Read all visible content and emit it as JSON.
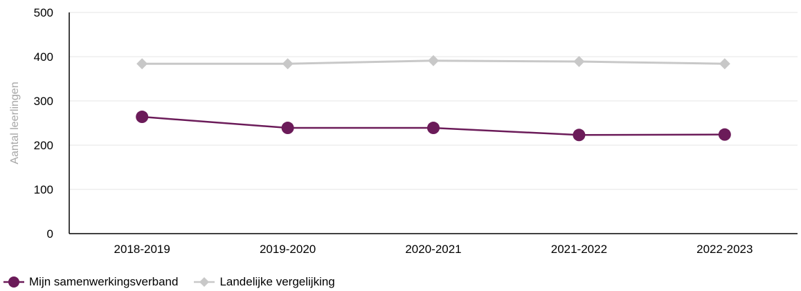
{
  "chart_data": {
    "type": "line",
    "categories": [
      "2018-2019",
      "2019-2020",
      "2020-2021",
      "2021-2022",
      "2022-2023"
    ],
    "series": [
      {
        "name": "Mijn samenwerkingsverband",
        "values": [
          264,
          239,
          239,
          223,
          224
        ],
        "color": "#6b1b59",
        "marker": "circle"
      },
      {
        "name": "Landelijke vergelijking",
        "values": [
          384,
          384,
          391,
          389,
          384
        ],
        "color": "#c8c8c8",
        "marker": "diamond"
      }
    ],
    "ylabel": "Aantal leerlingen",
    "ylim": [
      0,
      500
    ],
    "yticks": [
      "0",
      "100",
      "200",
      "300",
      "400",
      "500"
    ],
    "grid": true,
    "legend_position": "bottom-left"
  }
}
